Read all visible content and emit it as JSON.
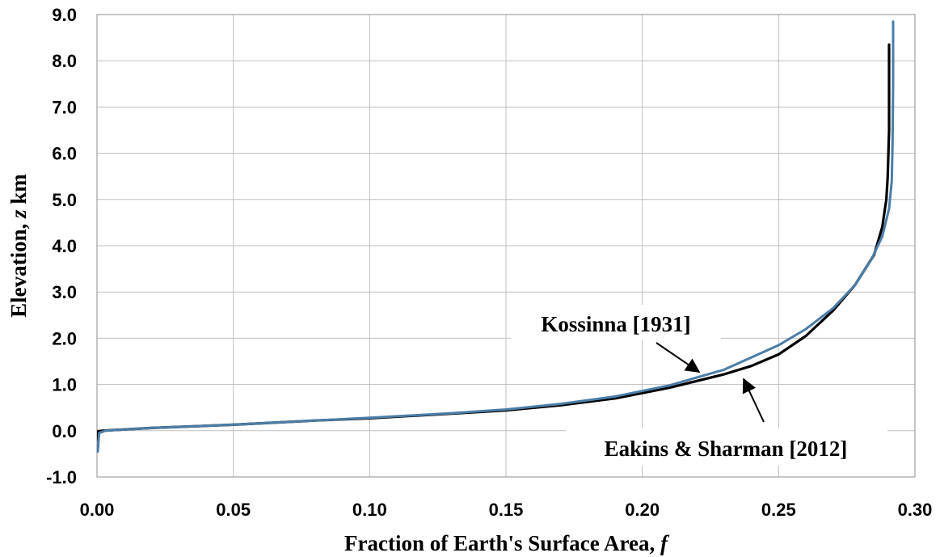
{
  "chart_data": {
    "type": "line",
    "xlabel": "Fraction of Earth's Surface Area, ",
    "xlabel_var": "f",
    "ylabel": "Elevation, ",
    "ylabel_var": "z",
    "ylabel_unit": " km",
    "xlim": [
      0.0,
      0.3
    ],
    "ylim": [
      -1.0,
      9.0
    ],
    "x_ticks": [
      "0.00",
      "0.05",
      "0.10",
      "0.15",
      "0.20",
      "0.25",
      "0.30"
    ],
    "y_ticks": [
      "-1.0",
      "0.0",
      "1.0",
      "2.0",
      "3.0",
      "4.0",
      "5.0",
      "6.0",
      "7.0",
      "8.0",
      "9.0"
    ],
    "grid": true,
    "legend": "none",
    "series": [
      {
        "name": "Eakins & Sharman [2012]",
        "color": "#000000",
        "x": [
          0.0005,
          0.0005,
          0.002,
          0.02,
          0.05,
          0.08,
          0.1,
          0.13,
          0.15,
          0.17,
          0.19,
          0.21,
          0.23,
          0.24,
          0.25,
          0.26,
          0.27,
          0.278,
          0.285,
          0.288,
          0.2895,
          0.29,
          0.2905,
          0.2905
        ],
        "y": [
          -0.2,
          -0.01,
          0.0,
          0.06,
          0.13,
          0.22,
          0.27,
          0.37,
          0.44,
          0.55,
          0.7,
          0.93,
          1.22,
          1.4,
          1.65,
          2.05,
          2.6,
          3.15,
          3.8,
          4.4,
          5.0,
          5.5,
          6.5,
          8.35
        ]
      },
      {
        "name": "Kossinna [1931]",
        "color": "#4a7ea8",
        "x": [
          0.0003,
          0.0008,
          0.003,
          0.02,
          0.05,
          0.08,
          0.1,
          0.13,
          0.15,
          0.17,
          0.19,
          0.21,
          0.23,
          0.25,
          0.26,
          0.27,
          0.278,
          0.284,
          0.288,
          0.2905,
          0.2915,
          0.2918,
          0.292,
          0.292
        ],
        "y": [
          -0.45,
          -0.05,
          0.0,
          0.06,
          0.13,
          0.22,
          0.28,
          0.38,
          0.46,
          0.58,
          0.74,
          0.98,
          1.32,
          1.85,
          2.2,
          2.65,
          3.15,
          3.7,
          4.2,
          4.8,
          5.4,
          6.2,
          7.5,
          8.85
        ]
      }
    ],
    "annotations": [
      {
        "text": "Kossinna [1931]",
        "target_x": 0.222,
        "target_y": 1.22
      },
      {
        "text": "Eakins & Sharman [2012]",
        "target_x": 0.236,
        "target_y": 1.22
      }
    ]
  }
}
